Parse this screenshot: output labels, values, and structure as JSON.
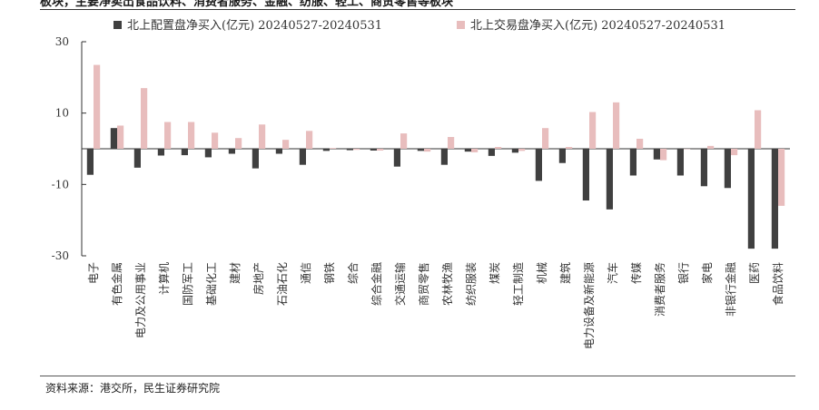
{
  "title": "板块，主要净卖出食品饮料、消费者服务、金融、纺服、轻工、商贸零售等板块",
  "source": "资料来源：港交所，民生证券研究院",
  "chart_data": {
    "type": "bar",
    "categories": [
      "电子",
      "有色金属",
      "电力及公用事业",
      "计算机",
      "国防军工",
      "基础化工",
      "建材",
      "房地产",
      "石油石化",
      "通信",
      "钢铁",
      "综合",
      "综合金融",
      "交通运输",
      "商贸零售",
      "农林牧渔",
      "纺织服装",
      "煤炭",
      "轻工制造",
      "机械",
      "建筑",
      "电力设备及新能源",
      "汽车",
      "传媒",
      "消费者服务",
      "银行",
      "家电",
      "非银行金融",
      "医药",
      "食品饮料"
    ],
    "series": [
      {
        "name": "北上配置盘净买入(亿元) 20240527-20240531",
        "color": "#404040",
        "values": [
          -7.3,
          5.8,
          -5.3,
          -1.9,
          -1.8,
          -2.4,
          -1.4,
          -5.5,
          -1.4,
          -4.5,
          -0.6,
          -0.4,
          -0.5,
          -5.0,
          -0.6,
          -4.5,
          -0.8,
          -2.0,
          -1.1,
          -9.0,
          -4.0,
          -14.5,
          -17.0,
          -7.5,
          -3.0,
          -7.5,
          -10.5,
          -11.0,
          -28.0,
          -28.0
        ]
      },
      {
        "name": "北上交易盘净买入(亿元) 20240527-20240531",
        "color": "#E8BDBD",
        "values": [
          23.5,
          6.5,
          17.0,
          7.5,
          7.5,
          4.5,
          3.0,
          6.8,
          2.5,
          5.0,
          0.2,
          -0.3,
          -0.5,
          4.3,
          -0.8,
          3.3,
          -1.0,
          0.5,
          -0.6,
          5.8,
          0.5,
          10.3,
          13.0,
          2.8,
          -3.2,
          0.0,
          0.8,
          -1.8,
          10.8,
          -16.0
        ]
      }
    ],
    "ylim": [
      -30,
      30
    ],
    "yticks": [
      -30,
      -10,
      10,
      30
    ],
    "grid": false,
    "legend_position": "top"
  }
}
